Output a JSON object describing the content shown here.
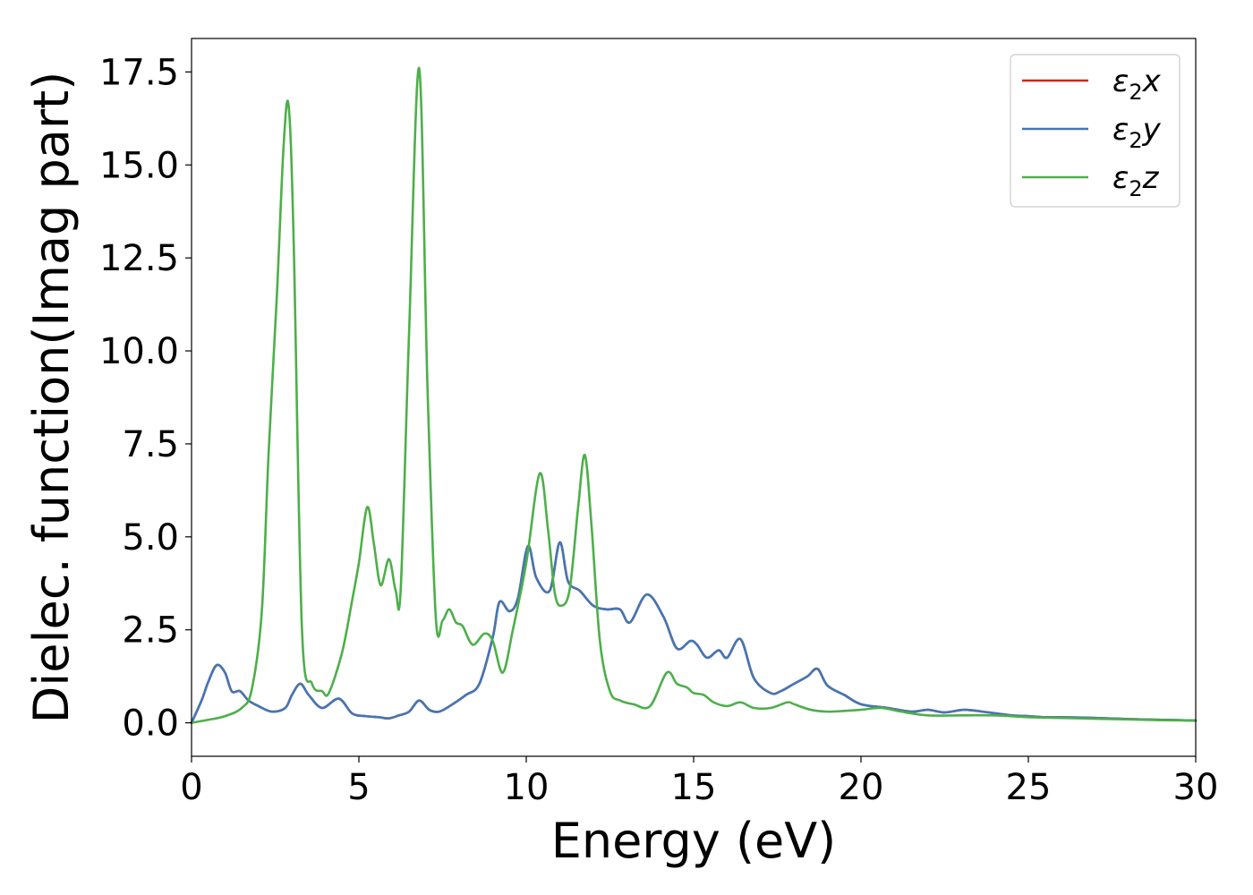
{
  "chart_data": {
    "type": "line",
    "xlabel": "Energy (eV)",
    "ylabel": "Dielec. function(Imag part)",
    "xlim": [
      0,
      30
    ],
    "ylim": [
      -0.9,
      18.4
    ],
    "x_ticks": [
      0,
      5,
      10,
      15,
      20,
      25,
      30
    ],
    "x_tick_labels": [
      "0",
      "5",
      "10",
      "15",
      "20",
      "25",
      "30"
    ],
    "y_ticks": [
      0,
      2.5,
      5,
      7.5,
      10,
      12.5,
      15,
      17.5
    ],
    "y_tick_labels": [
      "0.0",
      "2.5",
      "5.0",
      "7.5",
      "10.0",
      "12.5",
      "15.0",
      "17.5"
    ],
    "grid": false,
    "legend_position": "top-right",
    "legend": [
      {
        "base": "ε",
        "sub": "2",
        "suffix": "x",
        "color": "#e41a1c"
      },
      {
        "base": "ε",
        "sub": "2",
        "suffix": "y",
        "color": "#4178b4"
      },
      {
        "base": "ε",
        "sub": "2",
        "suffix": "z",
        "color": "#4daf4a"
      }
    ],
    "series": [
      {
        "name": "ε2x",
        "color": "#e41a1c",
        "x": [
          0,
          0.3,
          0.5,
          0.75,
          1.0,
          1.2,
          1.45,
          1.7,
          2.0,
          2.4,
          2.8,
          3.0,
          3.25,
          3.5,
          3.9,
          4.4,
          4.8,
          5.2,
          5.6,
          5.9,
          6.2,
          6.5,
          6.8,
          7.1,
          7.4,
          7.8,
          8.2,
          8.6,
          9.0,
          9.2,
          9.5,
          9.75,
          10.05,
          10.3,
          10.7,
          11.0,
          11.25,
          11.6,
          12.0,
          12.4,
          12.8,
          13.1,
          13.6,
          14.1,
          14.5,
          14.9,
          15.1,
          15.4,
          15.75,
          16.0,
          16.4,
          16.8,
          17.3,
          17.6,
          18.0,
          18.4,
          18.7,
          19.0,
          19.5,
          20.0,
          20.8,
          21.5,
          22.0,
          22.5,
          23.1,
          23.8,
          24.5,
          25.0,
          25.5,
          26.0,
          27.0,
          28.0,
          29.0,
          30.0
        ],
        "values": [
          0.0,
          0.6,
          1.1,
          1.55,
          1.35,
          0.85,
          0.85,
          0.6,
          0.45,
          0.3,
          0.4,
          0.75,
          1.05,
          0.75,
          0.4,
          0.65,
          0.25,
          0.18,
          0.15,
          0.12,
          0.2,
          0.3,
          0.6,
          0.35,
          0.3,
          0.5,
          0.75,
          1.05,
          2.3,
          3.25,
          3.0,
          3.35,
          4.75,
          3.9,
          3.55,
          4.85,
          3.8,
          3.55,
          3.15,
          3.05,
          3.05,
          2.7,
          3.45,
          2.85,
          2.0,
          2.2,
          2.1,
          1.75,
          1.95,
          1.75,
          2.25,
          1.2,
          0.8,
          0.85,
          1.05,
          1.25,
          1.45,
          1.0,
          0.75,
          0.5,
          0.4,
          0.3,
          0.35,
          0.28,
          0.35,
          0.28,
          0.2,
          0.18,
          0.15,
          0.15,
          0.13,
          0.1,
          0.08,
          0.06
        ]
      },
      {
        "name": "ε2y",
        "color": "#4178b4",
        "x": [
          0,
          0.3,
          0.5,
          0.75,
          1.0,
          1.2,
          1.45,
          1.7,
          2.0,
          2.4,
          2.8,
          3.0,
          3.25,
          3.5,
          3.9,
          4.4,
          4.8,
          5.2,
          5.6,
          5.9,
          6.2,
          6.5,
          6.8,
          7.1,
          7.4,
          7.8,
          8.2,
          8.6,
          9.0,
          9.2,
          9.5,
          9.75,
          10.05,
          10.3,
          10.7,
          11.0,
          11.25,
          11.6,
          12.0,
          12.4,
          12.8,
          13.1,
          13.6,
          14.1,
          14.5,
          14.9,
          15.1,
          15.4,
          15.75,
          16.0,
          16.4,
          16.8,
          17.3,
          17.6,
          18.0,
          18.4,
          18.7,
          19.0,
          19.5,
          20.0,
          20.8,
          21.5,
          22.0,
          22.5,
          23.1,
          23.8,
          24.5,
          25.0,
          25.5,
          26.0,
          27.0,
          28.0,
          29.0,
          30.0
        ],
        "values": [
          0.0,
          0.6,
          1.1,
          1.55,
          1.35,
          0.85,
          0.85,
          0.6,
          0.45,
          0.3,
          0.4,
          0.75,
          1.05,
          0.75,
          0.4,
          0.65,
          0.25,
          0.18,
          0.15,
          0.12,
          0.2,
          0.3,
          0.6,
          0.35,
          0.3,
          0.5,
          0.75,
          1.05,
          2.3,
          3.25,
          3.0,
          3.35,
          4.75,
          3.9,
          3.55,
          4.85,
          3.8,
          3.55,
          3.15,
          3.05,
          3.05,
          2.7,
          3.45,
          2.85,
          2.0,
          2.2,
          2.1,
          1.75,
          1.95,
          1.75,
          2.25,
          1.2,
          0.8,
          0.85,
          1.05,
          1.25,
          1.45,
          1.0,
          0.75,
          0.5,
          0.4,
          0.3,
          0.35,
          0.28,
          0.35,
          0.28,
          0.2,
          0.18,
          0.15,
          0.15,
          0.13,
          0.1,
          0.08,
          0.06
        ]
      },
      {
        "name": "ε2z",
        "color": "#4daf4a",
        "x": [
          0,
          0.5,
          1.0,
          1.5,
          1.8,
          2.1,
          2.3,
          2.55,
          2.75,
          2.9,
          3.05,
          3.3,
          3.6,
          3.9,
          4.1,
          4.5,
          4.8,
          5.0,
          5.25,
          5.45,
          5.65,
          5.9,
          6.1,
          6.25,
          6.5,
          6.8,
          7.05,
          7.3,
          7.5,
          7.7,
          7.9,
          8.1,
          8.4,
          8.75,
          9.0,
          9.3,
          9.6,
          10.0,
          10.4,
          10.65,
          10.85,
          11.05,
          11.3,
          11.55,
          11.75,
          11.95,
          12.2,
          12.5,
          12.8,
          13.2,
          13.7,
          14.2,
          14.5,
          14.8,
          15.0,
          15.3,
          15.6,
          16.0,
          16.4,
          16.8,
          17.3,
          17.8,
          18.0,
          18.5,
          19.0,
          19.5,
          20.0,
          20.6,
          21.2,
          22.0,
          23.0,
          24.0,
          25.0,
          26.0,
          27.0,
          28.0,
          29.0,
          30.0
        ],
        "values": [
          0.0,
          0.08,
          0.18,
          0.4,
          0.9,
          3.0,
          7.2,
          11.5,
          15.5,
          16.6,
          13.0,
          2.5,
          1.05,
          0.85,
          0.8,
          1.9,
          3.3,
          4.3,
          5.8,
          4.8,
          3.7,
          4.4,
          3.55,
          3.6,
          10.5,
          17.6,
          9.0,
          2.8,
          2.75,
          3.05,
          2.7,
          2.6,
          2.1,
          2.4,
          2.2,
          1.35,
          2.5,
          4.3,
          6.7,
          5.2,
          3.5,
          3.15,
          3.6,
          5.8,
          7.2,
          5.3,
          2.2,
          0.85,
          0.6,
          0.5,
          0.45,
          1.35,
          1.05,
          0.95,
          0.8,
          0.75,
          0.55,
          0.45,
          0.55,
          0.4,
          0.4,
          0.55,
          0.5,
          0.35,
          0.3,
          0.32,
          0.35,
          0.4,
          0.3,
          0.2,
          0.2,
          0.2,
          0.15,
          0.13,
          0.11,
          0.09,
          0.07,
          0.06
        ]
      }
    ]
  }
}
